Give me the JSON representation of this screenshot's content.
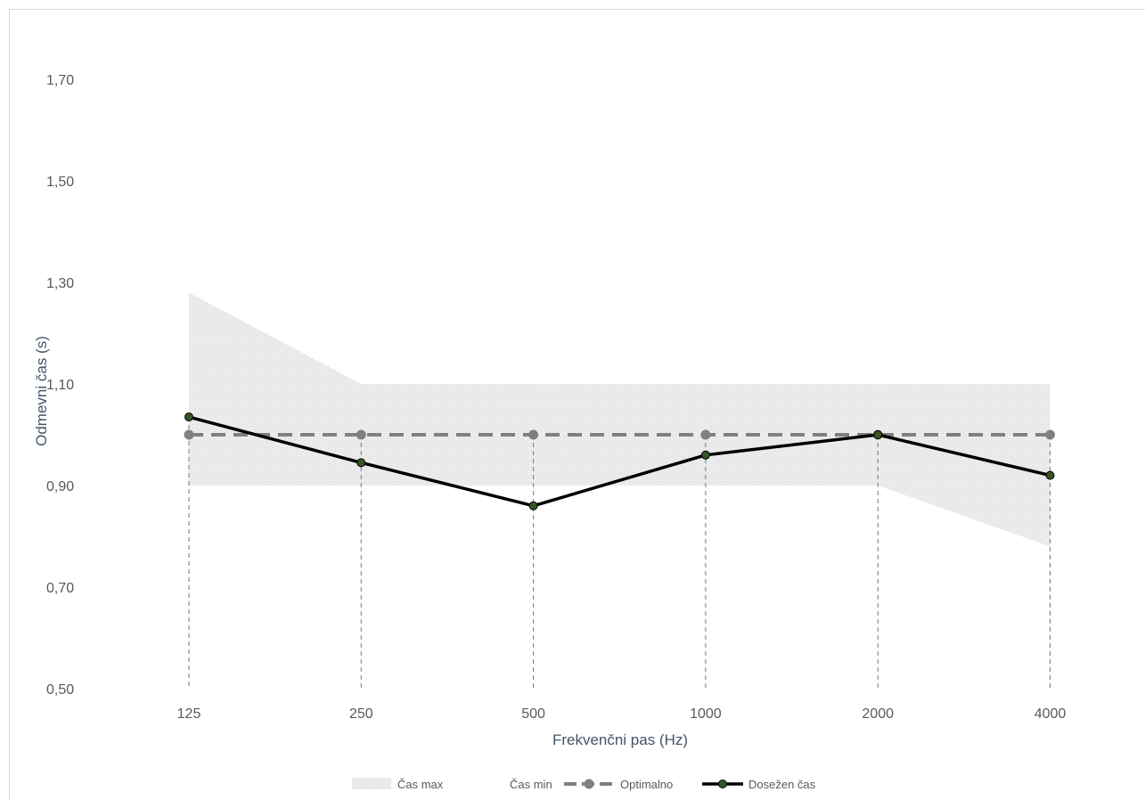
{
  "chart_data": {
    "type": "line",
    "categories": [
      "125",
      "250",
      "500",
      "1000",
      "2000",
      "4000"
    ],
    "xlabel": "Frekvenčni pas (Hz)",
    "ylabel": "Odmevni čas (s)",
    "ylim": [
      0.5,
      1.8
    ],
    "yticks": [
      "0,50",
      "0,70",
      "0,90",
      "1,10",
      "1,30",
      "1,50",
      "1,70"
    ],
    "ytick_values": [
      0.5,
      0.7,
      0.9,
      1.1,
      1.3,
      1.5,
      1.7
    ],
    "grid": false,
    "legend_position": "bottom",
    "series": [
      {
        "name": "Čas max",
        "kind": "band-upper",
        "values": [
          1.28,
          1.1,
          1.1,
          1.1,
          1.1,
          1.1
        ],
        "color": "#e7e7e7"
      },
      {
        "name": "Čas min",
        "kind": "band-lower",
        "values": [
          0.9,
          0.9,
          0.9,
          0.9,
          0.9,
          0.78
        ],
        "color": "#ffffff"
      },
      {
        "name": "Optimalno",
        "kind": "dashed-line",
        "values": [
          1.0,
          1.0,
          1.0,
          1.0,
          1.0,
          1.0
        ],
        "color": "#808080"
      },
      {
        "name": "Dosežen čas",
        "kind": "solid-line",
        "values": [
          1.035,
          0.945,
          0.86,
          0.96,
          1.0,
          0.92
        ],
        "color": "#000000",
        "marker_color": "#375623"
      }
    ],
    "drop_line_color": "#5b7fa6"
  }
}
